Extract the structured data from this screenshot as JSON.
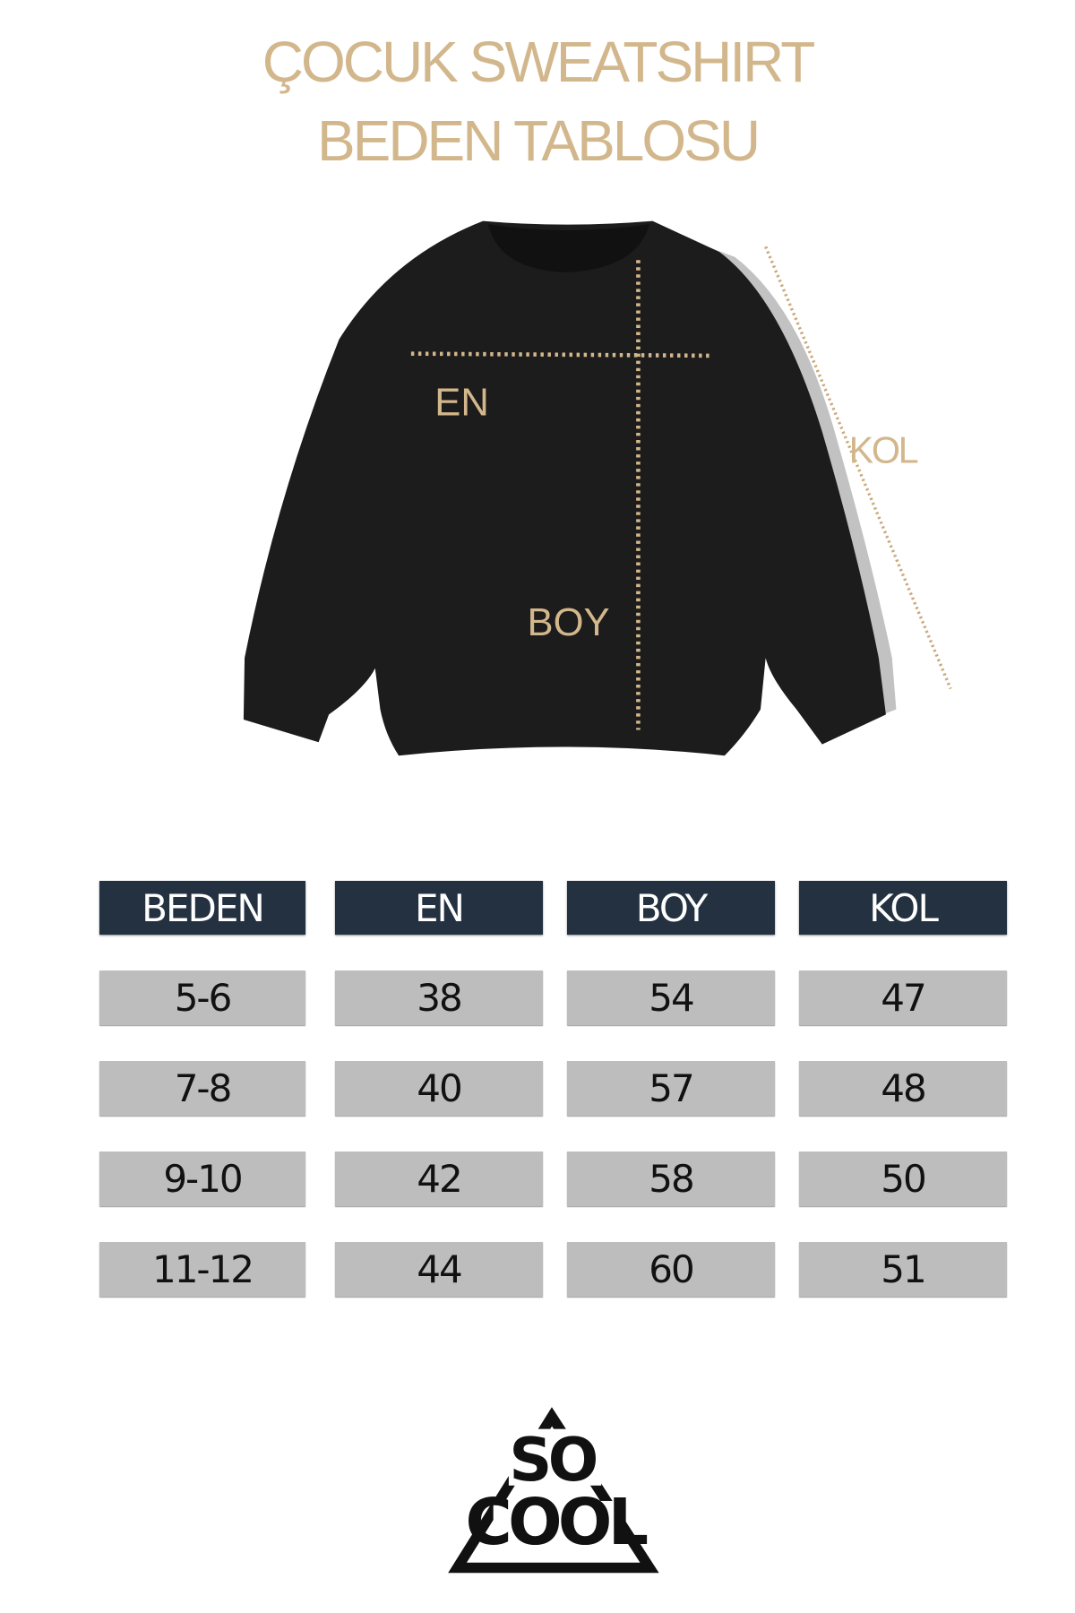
{
  "title": {
    "line1": "ÇOCUK SWEATSHIRT",
    "line2": "BEDEN TABLOSU"
  },
  "diagram": {
    "labels": {
      "en": "EN",
      "boy": "BOY",
      "kol": "KOL"
    },
    "garment_color": "#1c1c1c",
    "accent_color": "#d3b78c"
  },
  "table": {
    "headers": [
      "BEDEN",
      "EN",
      "BOY",
      "KOL"
    ],
    "rows": [
      [
        "5-6",
        "38",
        "54",
        "47"
      ],
      [
        "7-8",
        "40",
        "57",
        "48"
      ],
      [
        "9-10",
        "42",
        "58",
        "50"
      ],
      [
        "11-12",
        "44",
        "60",
        "51"
      ]
    ],
    "header_color": "#243140",
    "cell_color": "#bdbdbd"
  },
  "logo": {
    "line1": "SO",
    "line2": "COOL"
  }
}
